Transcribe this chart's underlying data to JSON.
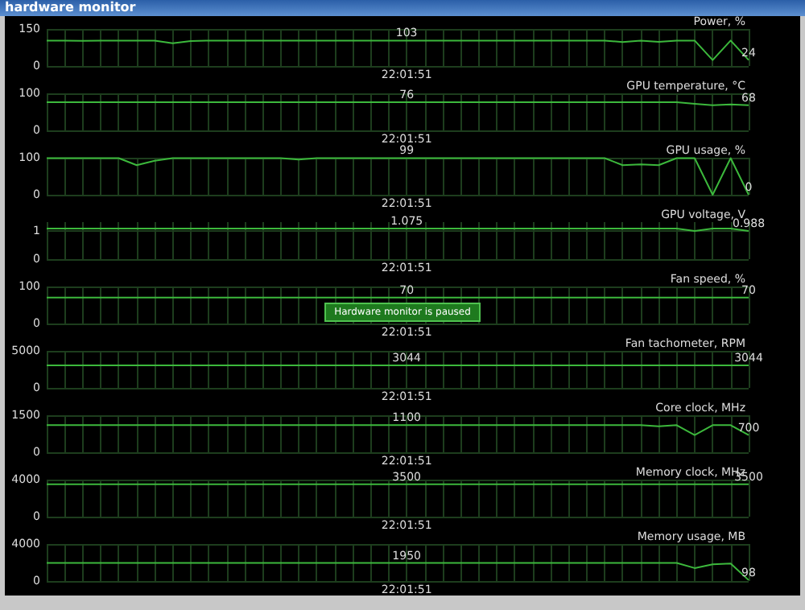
{
  "chart_data": [
    {
      "type": "line",
      "title": "hardware monitor",
      "ylabel": "Power, %",
      "categories": [
        null,
        null,
        null,
        null,
        null,
        null,
        null,
        null,
        null,
        null,
        null,
        null,
        null,
        null,
        null,
        null,
        null,
        null,
        null,
        null,
        "22:01:51",
        null,
        null,
        null,
        null,
        null,
        null,
        null,
        null,
        null,
        null,
        null,
        null,
        null,
        null,
        null,
        null,
        null,
        null,
        null
      ],
      "values": [
        103,
        103,
        102,
        103,
        103,
        103,
        103,
        92,
        101,
        103,
        103,
        103,
        103,
        103,
        103,
        103,
        103,
        103,
        103,
        103,
        103,
        103,
        103,
        103,
        103,
        103,
        103,
        103,
        103,
        103,
        103,
        103,
        97,
        103,
        98,
        103,
        103,
        24,
        103,
        24
      ],
      "value_labels": [
        null,
        null,
        null,
        null,
        null,
        null,
        null,
        null,
        null,
        null,
        null,
        null,
        null,
        null,
        null,
        null,
        null,
        null,
        null,
        null,
        "103",
        null,
        null,
        null,
        null,
        null,
        null,
        null,
        null,
        null,
        null,
        null,
        null,
        null,
        null,
        null,
        null,
        null,
        null,
        "24"
      ],
      "color": "#3cb83c",
      "ylim": [
        0,
        150
      ],
      "yticks": [
        0,
        150
      ],
      "grid": true
    },
    {
      "type": "line",
      "ylabel": "GPU temperature, °C",
      "categories": [
        null,
        null,
        null,
        null,
        null,
        null,
        null,
        null,
        null,
        null,
        null,
        null,
        null,
        null,
        null,
        null,
        null,
        null,
        null,
        null,
        "22:01:51",
        null,
        null,
        null,
        null,
        null,
        null,
        null,
        null,
        null,
        null,
        null,
        null,
        null,
        null,
        null,
        null,
        null,
        null,
        null
      ],
      "values": [
        76,
        76,
        76,
        76,
        76,
        76,
        76,
        76,
        76,
        76,
        76,
        76,
        76,
        76,
        76,
        76,
        76,
        76,
        76,
        76,
        76,
        76,
        76,
        76,
        76,
        76,
        76,
        76,
        76,
        76,
        76,
        76,
        76,
        76,
        76,
        76,
        72,
        68,
        70,
        68
      ],
      "value_labels": [
        null,
        null,
        null,
        null,
        null,
        null,
        null,
        null,
        null,
        null,
        null,
        null,
        null,
        null,
        null,
        null,
        null,
        null,
        null,
        null,
        "76",
        null,
        null,
        null,
        null,
        null,
        null,
        null,
        null,
        null,
        null,
        null,
        null,
        null,
        null,
        null,
        null,
        null,
        null,
        "68"
      ],
      "color": "#3cb83c",
      "ylim": [
        0,
        100
      ],
      "yticks": [
        0,
        100
      ],
      "grid": true
    },
    {
      "type": "line",
      "ylabel": "GPU usage, %",
      "categories": [
        null,
        null,
        null,
        null,
        null,
        null,
        null,
        null,
        null,
        null,
        null,
        null,
        null,
        null,
        null,
        null,
        null,
        null,
        null,
        null,
        "22:01:51",
        null,
        null,
        null,
        null,
        null,
        null,
        null,
        null,
        null,
        null,
        null,
        null,
        null,
        null,
        null,
        null,
        null,
        null,
        null
      ],
      "values": [
        99,
        99,
        99,
        99,
        99,
        80,
        92,
        99,
        99,
        99,
        99,
        99,
        99,
        99,
        95,
        99,
        99,
        99,
        99,
        99,
        99,
        99,
        99,
        99,
        99,
        99,
        99,
        99,
        99,
        99,
        99,
        99,
        80,
        82,
        80,
        99,
        99,
        0,
        99,
        0
      ],
      "value_labels": [
        null,
        null,
        null,
        null,
        null,
        null,
        null,
        null,
        null,
        null,
        null,
        null,
        null,
        null,
        null,
        null,
        null,
        null,
        null,
        null,
        "99",
        null,
        null,
        null,
        null,
        null,
        null,
        null,
        null,
        null,
        null,
        null,
        null,
        null,
        null,
        null,
        null,
        null,
        null,
        "0"
      ],
      "color": "#3cb83c",
      "ylim": [
        0,
        100
      ],
      "yticks": [
        0,
        100
      ],
      "grid": true
    },
    {
      "type": "line",
      "ylabel": "GPU voltage, V",
      "categories": [
        null,
        null,
        null,
        null,
        null,
        null,
        null,
        null,
        null,
        null,
        null,
        null,
        null,
        null,
        null,
        null,
        null,
        null,
        null,
        null,
        "22:01:51",
        null,
        null,
        null,
        null,
        null,
        null,
        null,
        null,
        null,
        null,
        null,
        null,
        null,
        null,
        null,
        null,
        null,
        null,
        null
      ],
      "values": [
        1.075,
        1.075,
        1.075,
        1.075,
        1.075,
        1.075,
        1.075,
        1.075,
        1.075,
        1.075,
        1.075,
        1.075,
        1.075,
        1.075,
        1.075,
        1.075,
        1.075,
        1.075,
        1.075,
        1.075,
        1.075,
        1.075,
        1.075,
        1.075,
        1.075,
        1.075,
        1.075,
        1.075,
        1.075,
        1.075,
        1.075,
        1.075,
        1.075,
        1.075,
        1.075,
        1.075,
        0.988,
        1.075,
        1.075,
        0.988
      ],
      "value_labels": [
        null,
        null,
        null,
        null,
        null,
        null,
        null,
        null,
        null,
        null,
        null,
        null,
        null,
        null,
        null,
        null,
        null,
        null,
        null,
        null,
        "1.075",
        null,
        null,
        null,
        null,
        null,
        null,
        null,
        null,
        null,
        null,
        null,
        null,
        null,
        null,
        null,
        null,
        null,
        null,
        "0.988"
      ],
      "color": "#3cb83c",
      "ylim": [
        0,
        1.3
      ],
      "yticks": [
        0,
        1
      ],
      "grid": true
    },
    {
      "type": "line",
      "ylabel": "Fan speed, %",
      "annotations": [
        "Hardware monitor is paused"
      ],
      "categories": [
        null,
        null,
        null,
        null,
        null,
        null,
        null,
        null,
        null,
        null,
        null,
        null,
        null,
        null,
        null,
        null,
        null,
        null,
        null,
        null,
        "22:01:51",
        null,
        null,
        null,
        null,
        null,
        null,
        null,
        null,
        null,
        null,
        null,
        null,
        null,
        null,
        null,
        null,
        null,
        null,
        null
      ],
      "values": [
        70,
        70,
        70,
        70,
        70,
        70,
        70,
        70,
        70,
        70,
        70,
        70,
        70,
        70,
        70,
        70,
        70,
        70,
        70,
        70,
        70,
        70,
        70,
        70,
        70,
        70,
        70,
        70,
        70,
        70,
        70,
        70,
        70,
        70,
        70,
        70,
        70,
        70,
        70,
        70
      ],
      "value_labels": [
        null,
        null,
        null,
        null,
        null,
        null,
        null,
        null,
        null,
        null,
        null,
        null,
        null,
        null,
        null,
        null,
        null,
        null,
        null,
        null,
        "70",
        null,
        null,
        null,
        null,
        null,
        null,
        null,
        null,
        null,
        null,
        null,
        null,
        null,
        null,
        null,
        null,
        null,
        null,
        "70"
      ],
      "color": "#3cb83c",
      "ylim": [
        0,
        100
      ],
      "yticks": [
        0,
        100
      ],
      "grid": true
    },
    {
      "type": "line",
      "ylabel": "Fan tachometer, RPM",
      "categories": [
        null,
        null,
        null,
        null,
        null,
        null,
        null,
        null,
        null,
        null,
        null,
        null,
        null,
        null,
        null,
        null,
        null,
        null,
        null,
        null,
        "22:01:51",
        null,
        null,
        null,
        null,
        null,
        null,
        null,
        null,
        null,
        null,
        null,
        null,
        null,
        null,
        null,
        null,
        null,
        null,
        null
      ],
      "values": [
        3044,
        3044,
        3044,
        3044,
        3044,
        3044,
        3044,
        3044,
        3044,
        3044,
        3044,
        3044,
        3044,
        3044,
        3044,
        3044,
        3044,
        3044,
        3044,
        3044,
        3044,
        3044,
        3044,
        3044,
        3044,
        3044,
        3044,
        3044,
        3044,
        3044,
        3044,
        3044,
        3044,
        3044,
        3044,
        3044,
        3044,
        3044,
        3044,
        3044
      ],
      "value_labels": [
        null,
        null,
        null,
        null,
        null,
        null,
        null,
        null,
        null,
        null,
        null,
        null,
        null,
        null,
        null,
        null,
        null,
        null,
        null,
        null,
        "3044",
        null,
        null,
        null,
        null,
        null,
        null,
        null,
        null,
        null,
        null,
        null,
        null,
        null,
        null,
        null,
        null,
        null,
        null,
        "3044"
      ],
      "color": "#3cb83c",
      "ylim": [
        0,
        5000
      ],
      "yticks": [
        0,
        {
          "value": 5000,
          "label": "5000"
        }
      ],
      "grid": true
    },
    {
      "type": "line",
      "ylabel": "Core clock, MHz",
      "categories": [
        null,
        null,
        null,
        null,
        null,
        null,
        null,
        null,
        null,
        null,
        null,
        null,
        null,
        null,
        null,
        null,
        null,
        null,
        null,
        null,
        "22:01:51",
        null,
        null,
        null,
        null,
        null,
        null,
        null,
        null,
        null,
        null,
        null,
        null,
        null,
        null,
        null,
        null,
        null,
        null,
        null
      ],
      "values": [
        1100,
        1100,
        1100,
        1100,
        1100,
        1100,
        1100,
        1100,
        1100,
        1100,
        1100,
        1100,
        1100,
        1100,
        1100,
        1100,
        1100,
        1100,
        1100,
        1100,
        1100,
        1100,
        1100,
        1100,
        1100,
        1100,
        1100,
        1100,
        1100,
        1100,
        1100,
        1100,
        1100,
        1100,
        1050,
        1100,
        700,
        1100,
        1100,
        700
      ],
      "value_labels": [
        null,
        null,
        null,
        null,
        null,
        null,
        null,
        null,
        null,
        null,
        null,
        null,
        null,
        null,
        null,
        null,
        null,
        null,
        null,
        null,
        "1100",
        null,
        null,
        null,
        null,
        null,
        null,
        null,
        null,
        null,
        null,
        null,
        null,
        null,
        null,
        null,
        null,
        null,
        null,
        "700"
      ],
      "color": "#3cb83c",
      "ylim": [
        0,
        1500
      ],
      "yticks": [
        0,
        {
          "value": 1500,
          "label": "1500"
        }
      ],
      "grid": true
    },
    {
      "type": "line",
      "ylabel": "Memory clock, MHz",
      "categories": [
        null,
        null,
        null,
        null,
        null,
        null,
        null,
        null,
        null,
        null,
        null,
        null,
        null,
        null,
        null,
        null,
        null,
        null,
        null,
        null,
        "22:01:51",
        null,
        null,
        null,
        null,
        null,
        null,
        null,
        null,
        null,
        null,
        null,
        null,
        null,
        null,
        null,
        null,
        null,
        null,
        null
      ],
      "values": [
        3500,
        3500,
        3500,
        3500,
        3500,
        3500,
        3500,
        3500,
        3500,
        3500,
        3500,
        3500,
        3500,
        3500,
        3500,
        3500,
        3500,
        3500,
        3500,
        3500,
        3500,
        3500,
        3500,
        3500,
        3500,
        3500,
        3500,
        3500,
        3500,
        3500,
        3500,
        3500,
        3500,
        3500,
        3500,
        3500,
        3500,
        3500,
        3500,
        3500
      ],
      "value_labels": [
        null,
        null,
        null,
        null,
        null,
        null,
        null,
        null,
        null,
        null,
        null,
        null,
        null,
        null,
        null,
        null,
        null,
        null,
        null,
        null,
        "3500",
        null,
        null,
        null,
        null,
        null,
        null,
        null,
        null,
        null,
        null,
        null,
        null,
        null,
        null,
        null,
        null,
        null,
        null,
        "3500"
      ],
      "color": "#3cb83c",
      "ylim": [
        0,
        4000
      ],
      "yticks": [
        0,
        {
          "value": 4000,
          "label": "4000"
        }
      ],
      "grid": true
    },
    {
      "type": "line",
      "ylabel": "Memory usage, MB",
      "categories": [
        null,
        null,
        null,
        null,
        null,
        null,
        null,
        null,
        null,
        null,
        null,
        null,
        null,
        null,
        null,
        null,
        null,
        null,
        null,
        null,
        "22:01:51",
        null,
        null,
        null,
        null,
        null,
        null,
        null,
        null,
        null,
        null,
        null,
        null,
        null,
        null,
        null,
        null,
        null,
        null,
        null
      ],
      "values": [
        1950,
        1950,
        1950,
        1950,
        1950,
        1950,
        1950,
        1950,
        1950,
        1950,
        1950,
        1950,
        1950,
        1950,
        1950,
        1950,
        1950,
        1950,
        1950,
        1950,
        1950,
        1950,
        1950,
        1950,
        1950,
        1950,
        1950,
        1950,
        1950,
        1950,
        1950,
        1950,
        1950,
        1950,
        1950,
        1950,
        1400,
        1800,
        1900,
        98
      ],
      "value_labels": [
        null,
        null,
        null,
        null,
        null,
        null,
        null,
        null,
        null,
        null,
        null,
        null,
        null,
        null,
        null,
        null,
        null,
        null,
        null,
        null,
        "1950",
        null,
        null,
        null,
        null,
        null,
        null,
        null,
        null,
        null,
        null,
        null,
        null,
        null,
        null,
        null,
        null,
        null,
        null,
        "98"
      ],
      "color": "#3cb83c",
      "ylim": [
        0,
        4000
      ],
      "yticks": [
        0,
        {
          "value": 4000,
          "label": "4000"
        }
      ],
      "grid": true
    }
  ]
}
